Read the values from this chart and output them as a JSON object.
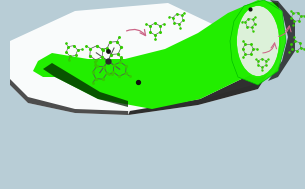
{
  "background_color": "#b8cdd6",
  "bright_green": "#22ee00",
  "molecule_color_green": "#33cc00",
  "molecule_color_pink": "#cc6688",
  "molecule_color_dark": "#555555",
  "molecule_color_black": "#111111",
  "figsize": [
    3.05,
    1.89
  ],
  "dpi": 100
}
